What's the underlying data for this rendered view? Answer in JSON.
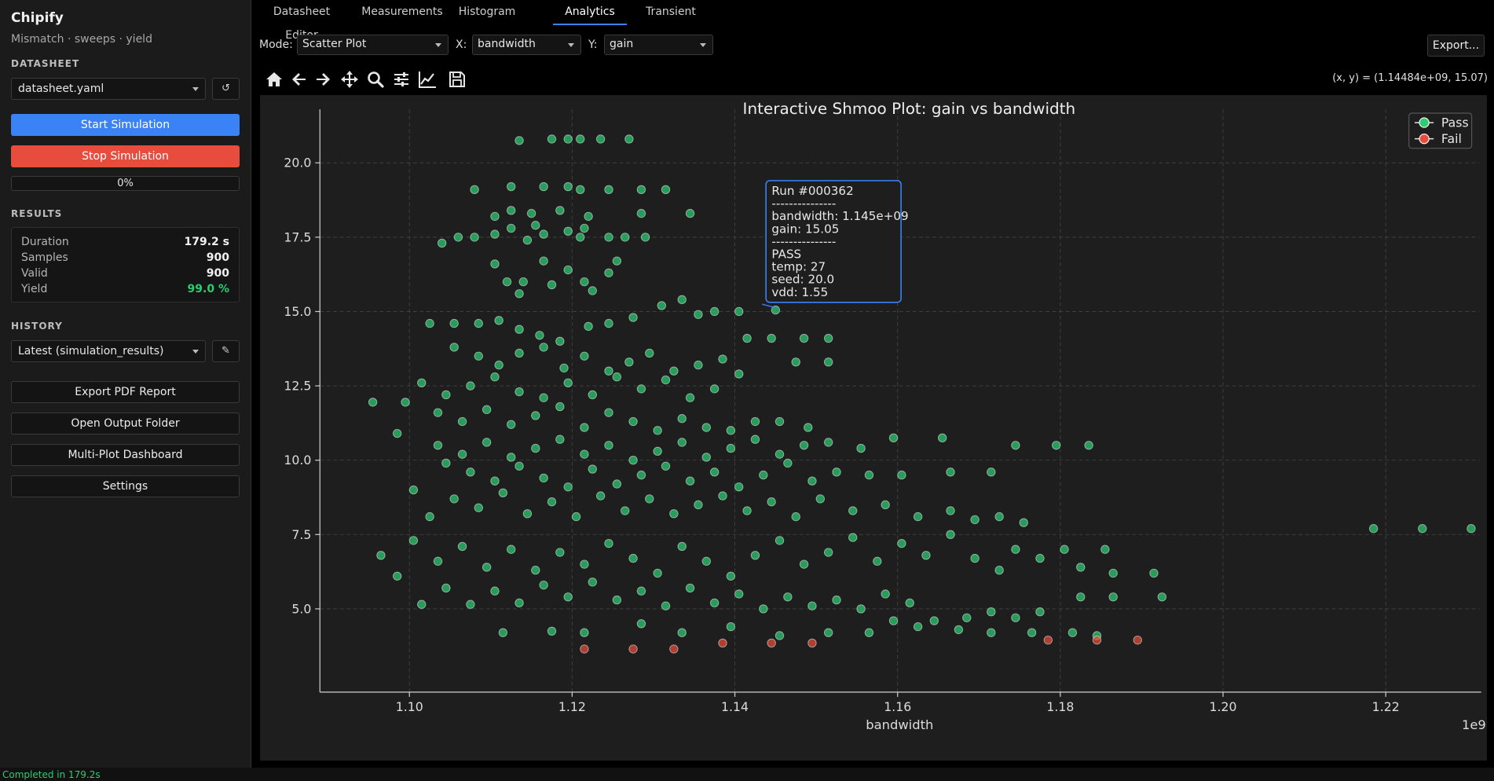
{
  "sidebar": {
    "app_title": "Chipify",
    "app_subtitle": "Mismatch · sweeps · yield",
    "datasheet_label": "DATASHEET",
    "datasheet_file": "datasheet.yaml",
    "refresh_icon": "↺",
    "start_button": "Start Simulation",
    "stop_button": "Stop Simulation",
    "progress_text": "0%",
    "progress_value": 0,
    "results_label": "RESULTS",
    "results": [
      {
        "label": "Duration",
        "value": "179.2 s"
      },
      {
        "label": "Samples",
        "value": "900"
      },
      {
        "label": "Valid",
        "value": "900"
      },
      {
        "label": "Yield",
        "value": "99.0 %"
      }
    ],
    "history_label": "HISTORY",
    "history_selected": "Latest (simulation_results)",
    "edit_icon": "✎",
    "action_buttons": [
      "Export PDF Report",
      "Open Output Folder",
      "Multi-Plot Dashboard",
      "Settings"
    ]
  },
  "status_bar": "Completed in 179.2s",
  "tabs": [
    {
      "label": "Datasheet Editor"
    },
    {
      "label": "Measurements"
    },
    {
      "label": "Histogram"
    },
    {
      "label": "Analytics",
      "active": true
    },
    {
      "label": "Transient"
    }
  ],
  "controls": {
    "mode_label": "Mode:",
    "mode_value": "Scatter Plot",
    "x_label": "X:",
    "x_value": "bandwidth",
    "y_label": "Y:",
    "y_value": "gain",
    "export_button": "Export..."
  },
  "toolbar_icons": [
    "home-icon",
    "back-arrow-icon",
    "forward-arrow-icon",
    "pan-icon",
    "zoom-icon",
    "configure-subplots-icon",
    "edit-axes-icon",
    "save-icon"
  ],
  "coord_readout": "(x, y) = (1.14484e+09, 15.07)",
  "colors": {
    "accent": "#3b82f6",
    "pass": "#2ecc71",
    "fail": "#e74c3c"
  },
  "tooltip": {
    "lines": [
      "Run #000362",
      "---------------",
      "bandwidth: 1.145e+09",
      "gain: 15.05",
      "---------------",
      "PASS",
      "temp: 27",
      "seed: 20.0",
      "vdd: 1.55"
    ],
    "point": [
      1.145,
      15.05
    ]
  },
  "chart_data": {
    "type": "scatter",
    "title": "Interactive Shmoo Plot: gain vs bandwidth",
    "xlabel": "bandwidth",
    "ylabel": "gain",
    "x_multiplier_label": "1e9",
    "xlim": [
      1.089,
      1.2315
    ],
    "ylim": [
      2.2,
      21.8
    ],
    "xticks": [
      "1.10",
      "1.12",
      "1.14",
      "1.16",
      "1.18",
      "1.20",
      "1.22"
    ],
    "xtick_values": [
      1.1,
      1.12,
      1.14,
      1.16,
      1.18,
      1.2,
      1.22
    ],
    "yticks": [
      "5.0",
      "7.5",
      "10.0",
      "12.5",
      "15.0",
      "17.5",
      "20.0"
    ],
    "ytick_values": [
      5.0,
      7.5,
      10.0,
      12.5,
      15.0,
      17.5,
      20.0
    ],
    "grid": true,
    "legend_position": "top-right",
    "series": [
      {
        "name": "Pass",
        "color": "#2ecc71",
        "points": [
          [
            1.1135,
            20.75
          ],
          [
            1.1175,
            20.8
          ],
          [
            1.1195,
            20.8
          ],
          [
            1.121,
            20.8
          ],
          [
            1.1235,
            20.8
          ],
          [
            1.127,
            20.8
          ],
          [
            1.108,
            19.1
          ],
          [
            1.1125,
            19.2
          ],
          [
            1.1165,
            19.2
          ],
          [
            1.1195,
            19.2
          ],
          [
            1.121,
            19.1
          ],
          [
            1.1245,
            19.1
          ],
          [
            1.1285,
            19.1
          ],
          [
            1.1315,
            19.1
          ],
          [
            1.1125,
            18.4
          ],
          [
            1.1105,
            18.2
          ],
          [
            1.115,
            18.3
          ],
          [
            1.1185,
            18.4
          ],
          [
            1.122,
            18.2
          ],
          [
            1.1285,
            18.3
          ],
          [
            1.1345,
            18.3
          ],
          [
            1.104,
            17.3
          ],
          [
            1.106,
            17.5
          ],
          [
            1.108,
            17.5
          ],
          [
            1.1105,
            17.6
          ],
          [
            1.1125,
            17.8
          ],
          [
            1.1145,
            17.4
          ],
          [
            1.1165,
            17.6
          ],
          [
            1.1195,
            17.7
          ],
          [
            1.121,
            17.5
          ],
          [
            1.1245,
            17.5
          ],
          [
            1.1265,
            17.5
          ],
          [
            1.129,
            17.5
          ],
          [
            1.1155,
            17.9
          ],
          [
            1.1215,
            17.8
          ],
          [
            1.1105,
            16.6
          ],
          [
            1.112,
            16.0
          ],
          [
            1.114,
            16.0
          ],
          [
            1.1165,
            16.7
          ],
          [
            1.1195,
            16.4
          ],
          [
            1.1215,
            16.0
          ],
          [
            1.1245,
            16.3
          ],
          [
            1.1255,
            16.7
          ],
          [
            1.1175,
            15.9
          ],
          [
            1.1225,
            15.7
          ],
          [
            1.1135,
            15.6
          ],
          [
            1.1025,
            14.6
          ],
          [
            1.1055,
            14.6
          ],
          [
            1.1085,
            14.6
          ],
          [
            1.111,
            14.7
          ],
          [
            1.1135,
            14.4
          ],
          [
            1.116,
            14.2
          ],
          [
            1.1185,
            14.0
          ],
          [
            1.122,
            14.5
          ],
          [
            1.1245,
            14.6
          ],
          [
            1.1275,
            14.8
          ],
          [
            1.131,
            15.2
          ],
          [
            1.1335,
            15.4
          ],
          [
            1.1355,
            14.9
          ],
          [
            1.1375,
            15.0
          ],
          [
            1.1405,
            15.0
          ],
          [
            1.1055,
            13.8
          ],
          [
            1.1085,
            13.5
          ],
          [
            1.111,
            13.2
          ],
          [
            1.1135,
            13.6
          ],
          [
            1.1165,
            13.8
          ],
          [
            1.119,
            13.1
          ],
          [
            1.1215,
            13.5
          ],
          [
            1.1245,
            13.0
          ],
          [
            1.127,
            13.3
          ],
          [
            1.1295,
            13.6
          ],
          [
            1.1325,
            13.0
          ],
          [
            1.1355,
            13.2
          ],
          [
            1.1385,
            13.4
          ],
          [
            1.1415,
            14.1
          ],
          [
            1.1445,
            14.1
          ],
          [
            1.1485,
            14.1
          ],
          [
            1.1515,
            14.1
          ],
          [
            1.1515,
            13.3
          ],
          [
            1.1475,
            13.3
          ],
          [
            1.1015,
            12.6
          ],
          [
            1.1045,
            12.2
          ],
          [
            1.1075,
            12.5
          ],
          [
            1.1105,
            12.8
          ],
          [
            1.1135,
            12.3
          ],
          [
            1.1165,
            12.1
          ],
          [
            1.1195,
            12.6
          ],
          [
            1.1225,
            12.2
          ],
          [
            1.1255,
            12.8
          ],
          [
            1.1285,
            12.4
          ],
          [
            1.1315,
            12.7
          ],
          [
            1.1345,
            12.1
          ],
          [
            1.1375,
            12.4
          ],
          [
            1.1405,
            12.9
          ],
          [
            1.0955,
            11.95
          ],
          [
            1.0995,
            11.95
          ],
          [
            1.1035,
            11.6
          ],
          [
            1.1065,
            11.3
          ],
          [
            1.1095,
            11.7
          ],
          [
            1.1125,
            11.2
          ],
          [
            1.1155,
            11.5
          ],
          [
            1.1185,
            11.8
          ],
          [
            1.1215,
            11.1
          ],
          [
            1.1245,
            11.6
          ],
          [
            1.1275,
            11.3
          ],
          [
            1.1305,
            11.0
          ],
          [
            1.1335,
            11.4
          ],
          [
            1.1365,
            11.1
          ],
          [
            1.1395,
            11.0
          ],
          [
            1.1425,
            11.3
          ],
          [
            1.1455,
            11.3
          ],
          [
            1.149,
            11.1
          ],
          [
            1.0985,
            10.9
          ],
          [
            1.1035,
            10.5
          ],
          [
            1.1065,
            10.2
          ],
          [
            1.1095,
            10.6
          ],
          [
            1.1125,
            10.1
          ],
          [
            1.1155,
            10.4
          ],
          [
            1.1185,
            10.7
          ],
          [
            1.1215,
            10.2
          ],
          [
            1.1245,
            10.5
          ],
          [
            1.1275,
            10.0
          ],
          [
            1.1305,
            10.3
          ],
          [
            1.1335,
            10.6
          ],
          [
            1.1365,
            10.1
          ],
          [
            1.1395,
            10.4
          ],
          [
            1.1425,
            10.7
          ],
          [
            1.1455,
            10.2
          ],
          [
            1.1485,
            10.5
          ],
          [
            1.1515,
            10.6
          ],
          [
            1.1555,
            10.4
          ],
          [
            1.1595,
            10.75
          ],
          [
            1.1655,
            10.75
          ],
          [
            1.1745,
            10.5
          ],
          [
            1.1795,
            10.5
          ],
          [
            1.1835,
            10.5
          ],
          [
            1.1045,
            9.9
          ],
          [
            1.1075,
            9.6
          ],
          [
            1.1105,
            9.3
          ],
          [
            1.1135,
            9.8
          ],
          [
            1.1165,
            9.4
          ],
          [
            1.1195,
            9.1
          ],
          [
            1.1225,
            9.7
          ],
          [
            1.1255,
            9.2
          ],
          [
            1.1285,
            9.5
          ],
          [
            1.1315,
            9.8
          ],
          [
            1.1345,
            9.3
          ],
          [
            1.1375,
            9.6
          ],
          [
            1.1405,
            9.1
          ],
          [
            1.1435,
            9.5
          ],
          [
            1.1465,
            9.9
          ],
          [
            1.1495,
            9.3
          ],
          [
            1.1525,
            9.6
          ],
          [
            1.1565,
            9.5
          ],
          [
            1.1605,
            9.5
          ],
          [
            1.1665,
            9.6
          ],
          [
            1.1715,
            9.6
          ],
          [
            1.1005,
            9.0
          ],
          [
            1.1025,
            8.1
          ],
          [
            1.1055,
            8.7
          ],
          [
            1.1085,
            8.4
          ],
          [
            1.1115,
            8.9
          ],
          [
            1.1145,
            8.2
          ],
          [
            1.1175,
            8.6
          ],
          [
            1.1205,
            8.1
          ],
          [
            1.1235,
            8.8
          ],
          [
            1.1265,
            8.3
          ],
          [
            1.1295,
            8.7
          ],
          [
            1.1325,
            8.2
          ],
          [
            1.1355,
            8.5
          ],
          [
            1.1385,
            8.8
          ],
          [
            1.1415,
            8.3
          ],
          [
            1.1445,
            8.6
          ],
          [
            1.1475,
            8.1
          ],
          [
            1.1505,
            8.7
          ],
          [
            1.1545,
            8.3
          ],
          [
            1.1585,
            8.5
          ],
          [
            1.1625,
            8.1
          ],
          [
            1.1665,
            8.3
          ],
          [
            1.1695,
            8.0
          ],
          [
            1.1725,
            8.1
          ],
          [
            1.1755,
            7.9
          ],
          [
            1.0965,
            6.8
          ],
          [
            1.0985,
            6.1
          ],
          [
            1.1005,
            7.3
          ],
          [
            1.1035,
            6.6
          ],
          [
            1.1065,
            7.1
          ],
          [
            1.1095,
            6.4
          ],
          [
            1.1125,
            7.0
          ],
          [
            1.1155,
            6.3
          ],
          [
            1.1185,
            6.9
          ],
          [
            1.1215,
            6.5
          ],
          [
            1.1245,
            7.2
          ],
          [
            1.1275,
            6.7
          ],
          [
            1.1305,
            6.2
          ],
          [
            1.1335,
            7.1
          ],
          [
            1.1365,
            6.6
          ],
          [
            1.1395,
            6.1
          ],
          [
            1.1425,
            6.8
          ],
          [
            1.1455,
            7.3
          ],
          [
            1.1485,
            6.5
          ],
          [
            1.1515,
            6.9
          ],
          [
            1.1545,
            7.4
          ],
          [
            1.1575,
            6.6
          ],
          [
            1.1605,
            7.2
          ],
          [
            1.1635,
            6.8
          ],
          [
            1.1665,
            7.5
          ],
          [
            1.1695,
            6.7
          ],
          [
            1.1725,
            6.3
          ],
          [
            1.1745,
            7.0
          ],
          [
            1.1775,
            6.7
          ],
          [
            1.1805,
            7.0
          ],
          [
            1.1825,
            6.4
          ],
          [
            1.1855,
            7.0
          ],
          [
            1.1865,
            6.2
          ],
          [
            1.1915,
            6.2
          ],
          [
            1.1015,
            5.15
          ],
          [
            1.1045,
            5.7
          ],
          [
            1.1075,
            5.15
          ],
          [
            1.1105,
            5.6
          ],
          [
            1.1135,
            5.2
          ],
          [
            1.1165,
            5.8
          ],
          [
            1.1195,
            5.4
          ],
          [
            1.1225,
            5.9
          ],
          [
            1.1255,
            5.3
          ],
          [
            1.1285,
            5.6
          ],
          [
            1.1315,
            5.1
          ],
          [
            1.1345,
            5.7
          ],
          [
            1.1375,
            5.2
          ],
          [
            1.1405,
            5.5
          ],
          [
            1.1435,
            5.0
          ],
          [
            1.1465,
            5.4
          ],
          [
            1.1495,
            5.1
          ],
          [
            1.1525,
            5.3
          ],
          [
            1.1555,
            5.0
          ],
          [
            1.1585,
            5.5
          ],
          [
            1.1615,
            5.2
          ],
          [
            1.1645,
            4.6
          ],
          [
            1.1685,
            4.7
          ],
          [
            1.1715,
            4.9
          ],
          [
            1.1745,
            4.7
          ],
          [
            1.1775,
            4.9
          ],
          [
            1.1825,
            5.4
          ],
          [
            1.1865,
            5.4
          ],
          [
            1.1925,
            5.4
          ],
          [
            1.1115,
            4.2
          ],
          [
            1.1175,
            4.25
          ],
          [
            1.1215,
            4.2
          ],
          [
            1.1285,
            4.5
          ],
          [
            1.1335,
            4.2
          ],
          [
            1.1395,
            4.4
          ],
          [
            1.1455,
            4.1
          ],
          [
            1.1515,
            4.2
          ],
          [
            1.1565,
            4.2
          ],
          [
            1.1595,
            4.6
          ],
          [
            1.1625,
            4.4
          ],
          [
            1.1675,
            4.3
          ],
          [
            1.1715,
            4.2
          ],
          [
            1.1765,
            4.2
          ],
          [
            1.1815,
            4.2
          ],
          [
            1.1845,
            4.1
          ],
          [
            1.2185,
            7.7
          ],
          [
            1.2245,
            7.7
          ],
          [
            1.2305,
            7.7
          ],
          [
            1.145,
            15.05
          ]
        ]
      },
      {
        "name": "Fail",
        "color": "#e74c3c",
        "points": [
          [
            1.1215,
            3.65
          ],
          [
            1.1275,
            3.65
          ],
          [
            1.1325,
            3.65
          ],
          [
            1.1385,
            3.85
          ],
          [
            1.1445,
            3.85
          ],
          [
            1.1495,
            3.85
          ],
          [
            1.1785,
            3.95
          ],
          [
            1.1845,
            3.95
          ],
          [
            1.1895,
            3.95
          ]
        ]
      }
    ]
  }
}
